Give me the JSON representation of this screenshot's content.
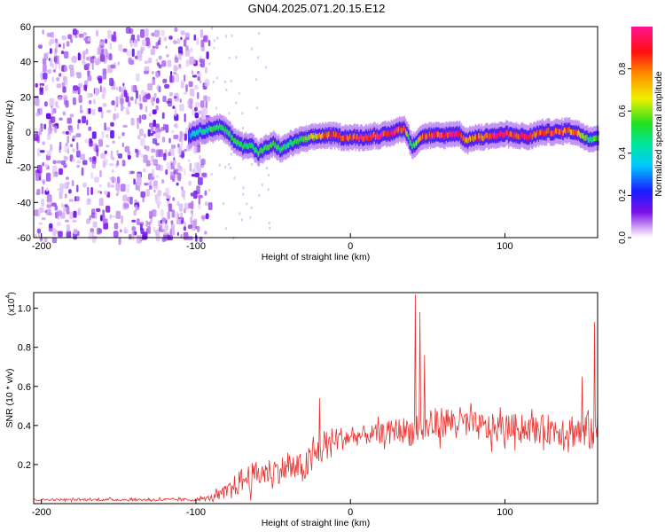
{
  "page": {
    "title": "GN04.2025.071.20.15.E12"
  },
  "chart_data": [
    {
      "type": "heatmap",
      "title": "GN04.2025.071.20.15.E12",
      "xlabel": "Height of straight line (km)",
      "ylabel": "Frequency (Hz)",
      "xlim": [
        -205,
        160
      ],
      "ylim": [
        -60,
        60
      ],
      "xticks": [
        -200,
        -100,
        0,
        100
      ],
      "yticks": [
        -60,
        -40,
        -20,
        0,
        20,
        40,
        60
      ],
      "colorbar": {
        "label": "Normalized spectral amplitude",
        "range": [
          0,
          1
        ],
        "ticks": [
          "0.0",
          "0.2",
          "0.4",
          "0.6",
          "0.8"
        ],
        "tick_values": [
          0,
          0.2,
          0.4,
          0.6,
          0.8
        ],
        "colormap": "rainbow (white→purple→blue→cyan→green→yellow→red→magenta)"
      },
      "noise_region": {
        "x_range": [
          -205,
          -92
        ],
        "y_range": [
          -60,
          60
        ],
        "amplitude": [
          0.0,
          0.3
        ]
      },
      "ridge": {
        "x": [
          -105,
          -100,
          -95,
          -90,
          -85,
          -80,
          -75,
          -70,
          -65,
          -60,
          -55,
          -50,
          -45,
          -40,
          -35,
          -30,
          -25,
          -20,
          -15,
          -10,
          -5,
          0,
          5,
          10,
          15,
          20,
          25,
          30,
          35,
          38,
          40,
          45,
          50,
          55,
          60,
          65,
          70,
          75,
          80,
          85,
          90,
          95,
          100,
          105,
          110,
          115,
          120,
          125,
          130,
          135,
          140,
          145,
          150,
          155,
          160
        ],
        "y": [
          -2,
          0,
          1,
          2,
          3,
          0,
          -5,
          -8,
          -7,
          -12,
          -9,
          -7,
          -10,
          -7,
          -5,
          -4,
          -3,
          -2,
          -2,
          -2,
          -3,
          -3,
          -3,
          -3,
          -2,
          -2,
          -1,
          1,
          2,
          -5,
          -8,
          -3,
          -2,
          -2,
          -2,
          -1,
          -1,
          -5,
          -3,
          -3,
          -2,
          -2,
          -1,
          -2,
          -2,
          -3,
          -1,
          0,
          0,
          0,
          1,
          0,
          -2,
          -4,
          -3
        ],
        "amplitude": [
          0.3,
          0.4,
          0.45,
          0.5,
          0.5,
          0.5,
          0.5,
          0.5,
          0.5,
          0.5,
          0.5,
          0.5,
          0.5,
          0.45,
          0.5,
          0.55,
          0.65,
          0.75,
          0.85,
          0.9,
          0.85,
          0.85,
          0.9,
          0.95,
          0.85,
          0.9,
          0.95,
          0.9,
          0.8,
          0.5,
          0.45,
          0.75,
          0.85,
          0.85,
          0.9,
          0.95,
          0.9,
          0.75,
          0.8,
          0.85,
          0.9,
          0.95,
          0.95,
          0.9,
          0.85,
          0.9,
          0.8,
          0.8,
          0.85,
          0.8,
          0.85,
          0.8,
          0.6,
          0.5,
          0.6
        ]
      }
    },
    {
      "type": "line",
      "xlabel": "Height of straight line (km)",
      "ylabel": "SNR (10 * v/v)",
      "yscale_label": "(x10",
      "yscale_exp": "4",
      "yscale_close": ")",
      "xlim": [
        -205,
        160
      ],
      "ylim": [
        0,
        1.08
      ],
      "xticks": [
        -200,
        -100,
        0,
        100
      ],
      "yticks": [
        "0.2",
        "0.4",
        "0.6",
        "0.8",
        "1.0"
      ],
      "ytick_values": [
        0.2,
        0.4,
        0.6,
        0.8,
        1.0
      ],
      "series": [
        {
          "color": "#e8302c",
          "envelope_x": [
            -205,
            -100,
            -90,
            -80,
            -70,
            -60,
            -50,
            -40,
            -30,
            -20,
            -10,
            0,
            10,
            20,
            30,
            40,
            50,
            60,
            70,
            80,
            90,
            100,
            110,
            120,
            130,
            140,
            150,
            160
          ],
          "envelope_mean": [
            0.02,
            0.02,
            0.03,
            0.06,
            0.12,
            0.15,
            0.17,
            0.18,
            0.18,
            0.27,
            0.33,
            0.34,
            0.35,
            0.36,
            0.38,
            0.37,
            0.39,
            0.42,
            0.42,
            0.4,
            0.38,
            0.39,
            0.39,
            0.38,
            0.38,
            0.38,
            0.37,
            0.38
          ],
          "envelope_spread": [
            0.005,
            0.008,
            0.015,
            0.04,
            0.07,
            0.07,
            0.07,
            0.07,
            0.08,
            0.09,
            0.07,
            0.05,
            0.05,
            0.05,
            0.06,
            0.08,
            0.09,
            0.08,
            0.08,
            0.07,
            0.08,
            0.07,
            0.07,
            0.07,
            0.08,
            0.09,
            0.1,
            0.12
          ],
          "peaks": [
            {
              "x": -20,
              "y": 0.54
            },
            {
              "x": 42,
              "y": 1.07
            },
            {
              "x": 45,
              "y": 0.98
            },
            {
              "x": 48,
              "y": 0.76
            },
            {
              "x": 158,
              "y": 0.93
            },
            {
              "x": 150,
              "y": 0.65
            }
          ]
        }
      ]
    }
  ]
}
